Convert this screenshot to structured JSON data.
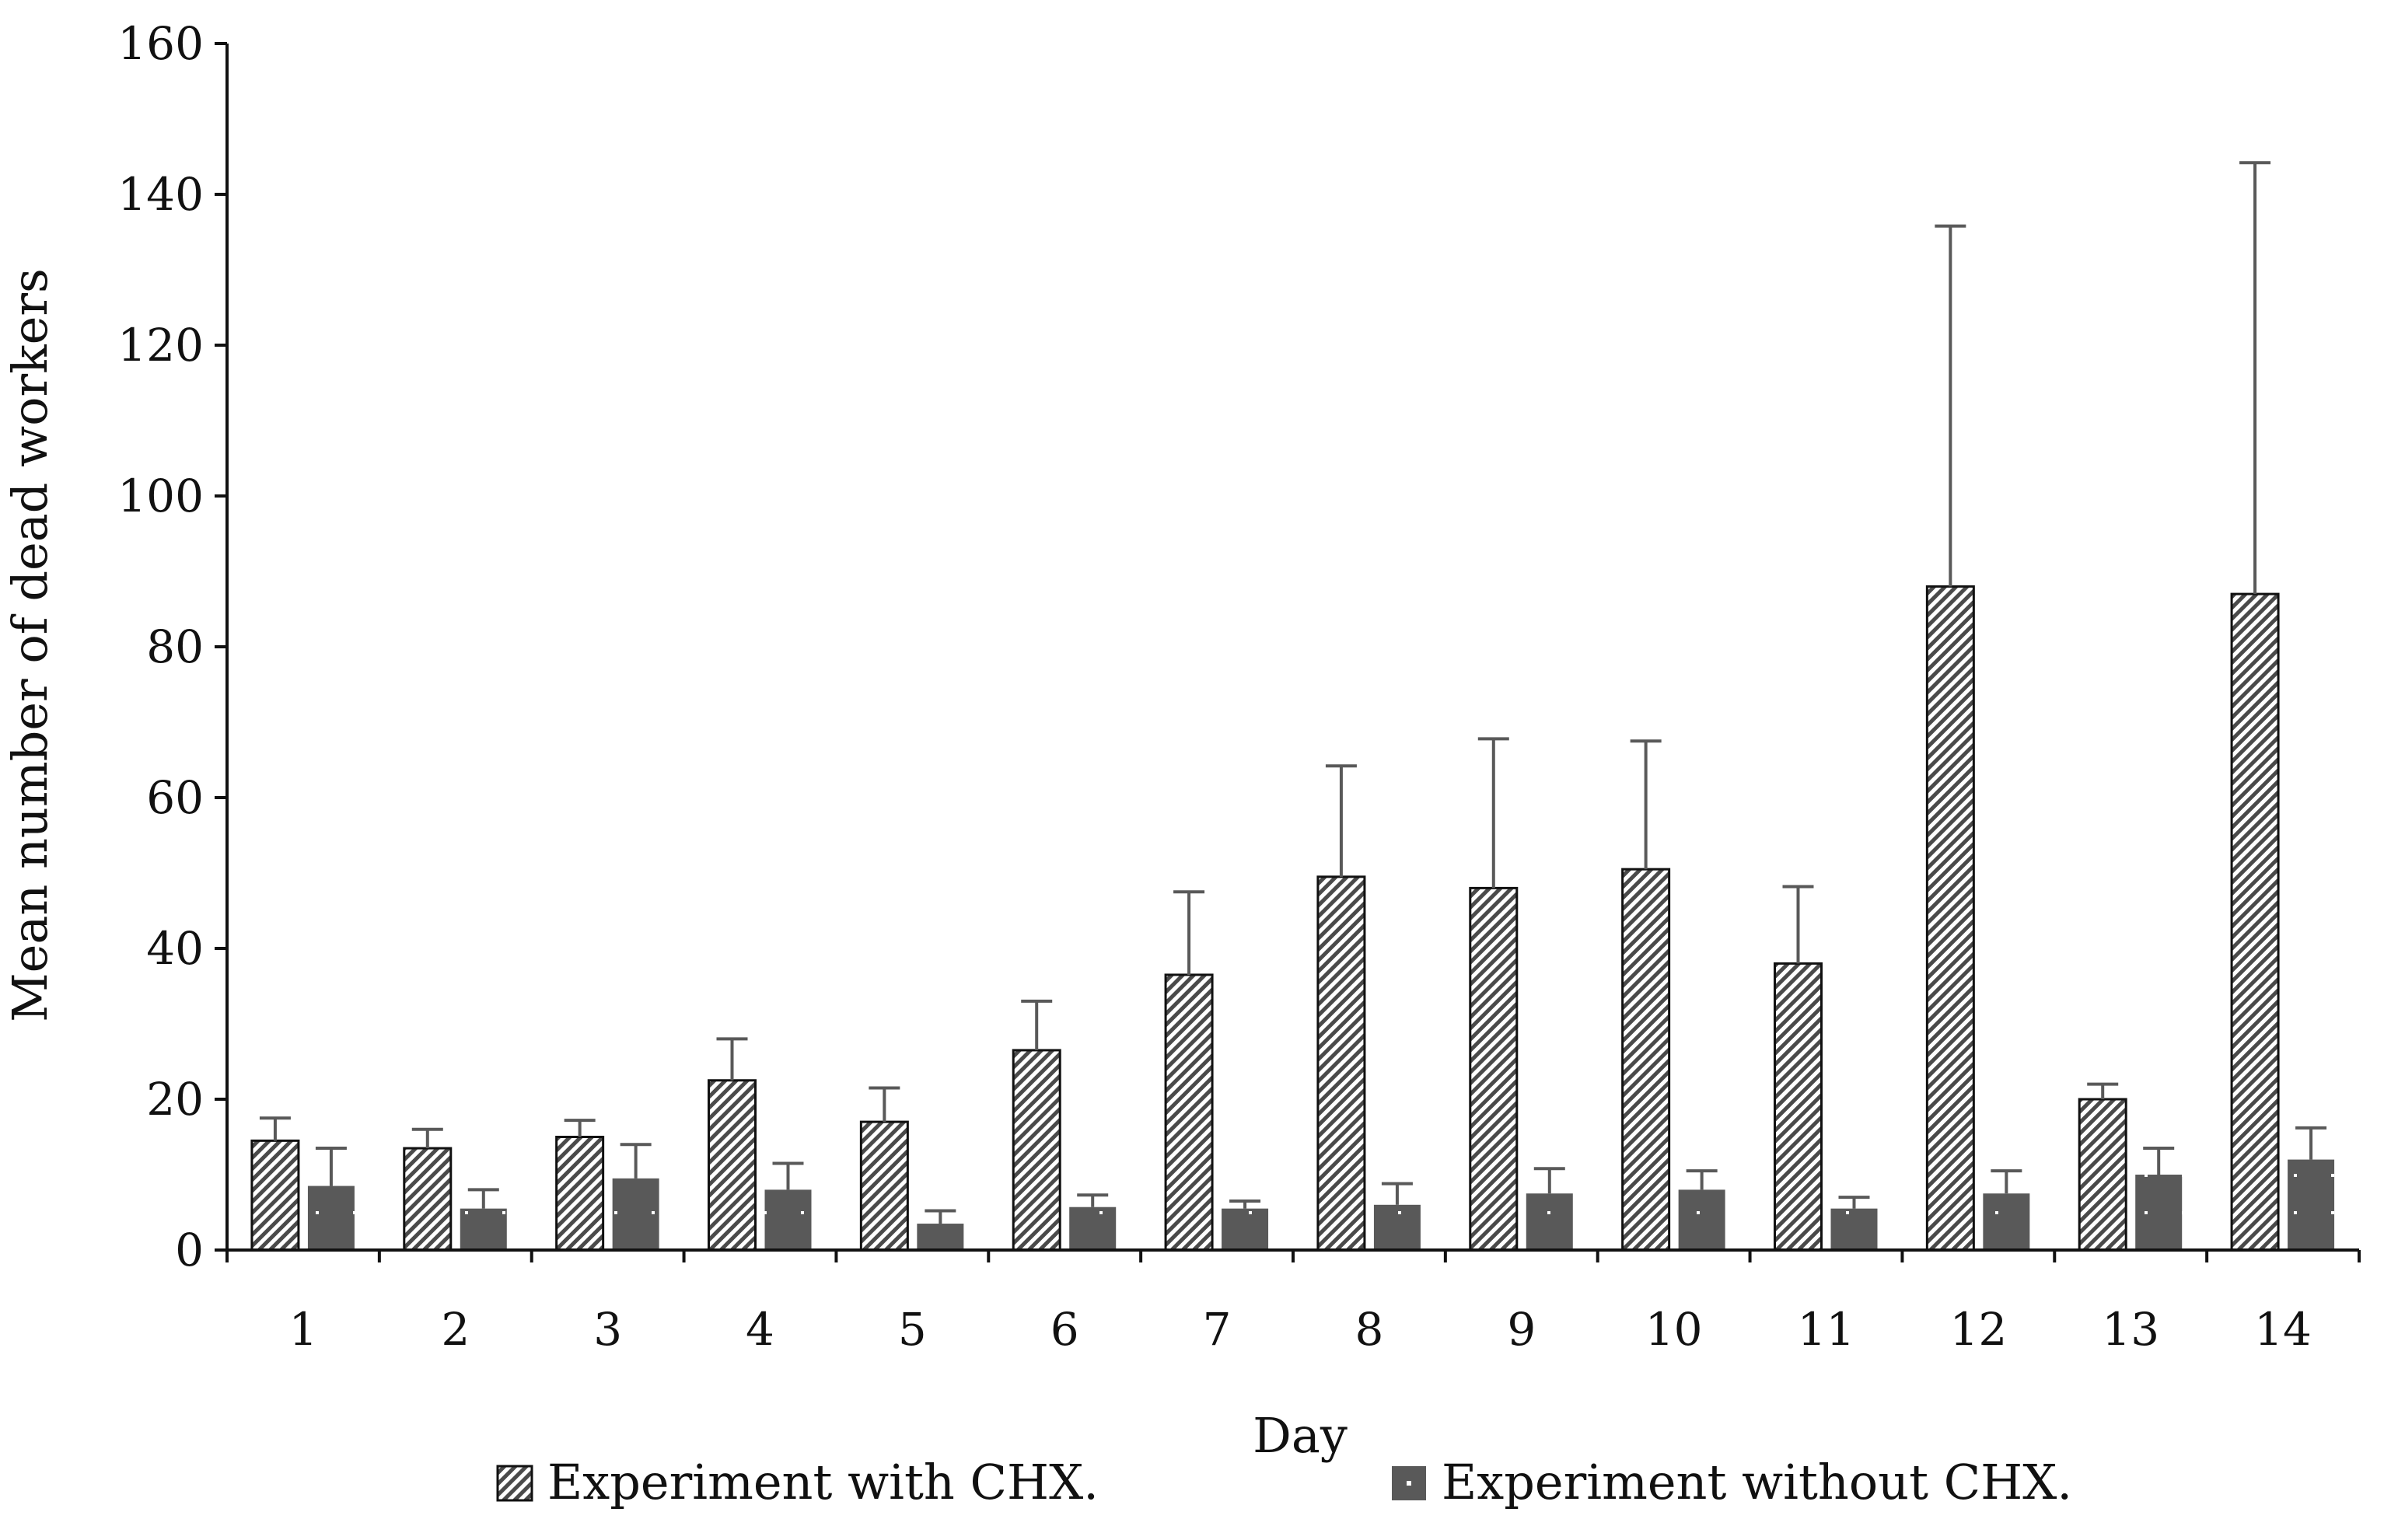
{
  "chart_data": {
    "type": "bar",
    "title": "",
    "xlabel": "Day",
    "ylabel": "Mean number of dead workers",
    "ylim": [
      0,
      160
    ],
    "yticks": [
      0,
      20,
      40,
      60,
      80,
      100,
      120,
      140,
      160
    ],
    "categories": [
      "1",
      "2",
      "3",
      "4",
      "5",
      "6",
      "7",
      "8",
      "9",
      "10",
      "11",
      "12",
      "13",
      "14"
    ],
    "grid": false,
    "legend_position": "bottom-center",
    "series": [
      {
        "name": "Experiment with CHX.",
        "pattern": "diagonal-hatch",
        "color": "#4a4a4a",
        "values": [
          14.5,
          13.5,
          15,
          22.5,
          17,
          26.5,
          36.5,
          49.5,
          48,
          50.5,
          38,
          88,
          20,
          87
        ],
        "error_upper": [
          17.5,
          16,
          17.2,
          28,
          21.5,
          33,
          47.5,
          64.2,
          67.8,
          67.5,
          48.2,
          135.8,
          22,
          144.2
        ]
      },
      {
        "name": "Experiment without CHX.",
        "pattern": "dotted-fill",
        "color": "#595959",
        "values": [
          8.5,
          5.5,
          9.5,
          8,
          3.5,
          5.7,
          5.5,
          6,
          7.5,
          8,
          5.5,
          7.5,
          10,
          12
        ],
        "error_upper": [
          13.5,
          8,
          14,
          11.5,
          5.2,
          7.3,
          6.5,
          8.8,
          10.8,
          10.5,
          7,
          10.5,
          13.5,
          16.2
        ]
      }
    ]
  }
}
